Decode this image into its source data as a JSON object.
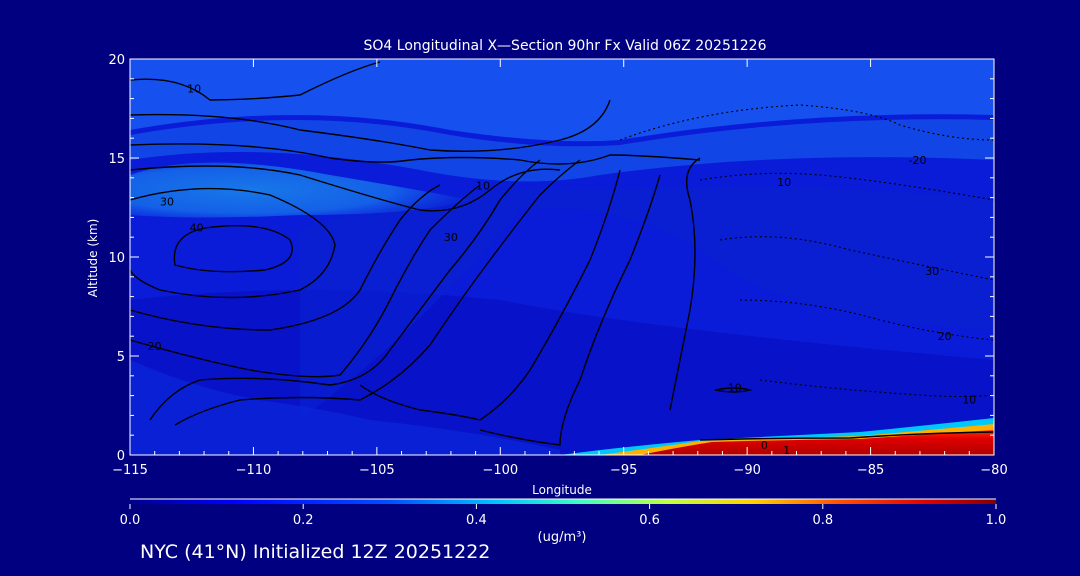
{
  "chart_data": {
    "type": "heatmap",
    "title": "SO4 Longitudinal X—Section 90hr  Fx Valid 06Z 20251226",
    "xlabel": "Longitude",
    "ylabel": "Altitude (km)",
    "xlim": [
      -115,
      -80
    ],
    "ylim": [
      0,
      20
    ],
    "x_ticks": [
      -115,
      -110,
      -105,
      -100,
      -95,
      -90,
      -85,
      -80
    ],
    "y_ticks": [
      0,
      5,
      10,
      15,
      20
    ],
    "colorbar": {
      "label": "(ug/m³)",
      "range": [
        0.0,
        1.0
      ],
      "ticks": [
        "0.0",
        "0.2",
        "0.4",
        "0.6",
        "0.8",
        "1.0"
      ]
    },
    "fill_regions": [
      {
        "lon_range": [
          -93,
          -80
        ],
        "alt_range": [
          0,
          1.2
        ],
        "value": 0.95,
        "note_color": "red"
      },
      {
        "lon_range": [
          -115,
          -104
        ],
        "alt_range": [
          12.5,
          15
        ],
        "value": 0.32
      },
      {
        "lon_range": [
          -115,
          -95
        ],
        "alt_range": [
          15,
          18
        ],
        "value": 0.2
      },
      {
        "lon_range": [
          -95,
          -80
        ],
        "alt_range": [
          16,
          20
        ],
        "value": 0.18
      }
    ],
    "contour_labels": [
      {
        "text": "10",
        "lon": -112.4,
        "alt": 18.5
      },
      {
        "text": "10",
        "lon": -100.7,
        "alt": 13.6
      },
      {
        "text": "10",
        "lon": -88.5,
        "alt": 13.8
      },
      {
        "text": "30",
        "lon": -113.5,
        "alt": 12.8
      },
      {
        "text": "40",
        "lon": -112.3,
        "alt": 11.5
      },
      {
        "text": "30",
        "lon": -102.0,
        "alt": 11.0
      },
      {
        "text": "20",
        "lon": -114.0,
        "alt": 5.5
      },
      {
        "text": "-20",
        "lon": -83.1,
        "alt": 14.9
      },
      {
        "text": "30",
        "lon": -82.5,
        "alt": 9.3
      },
      {
        "text": "20",
        "lon": -82.0,
        "alt": 6.0
      },
      {
        "text": "10",
        "lon": -81.0,
        "alt": 2.8
      },
      {
        "text": "10",
        "lon": -90.5,
        "alt": 3.4
      },
      {
        "text": "0",
        "lon": -89.3,
        "alt": 0.5
      },
      {
        "text": "1",
        "lon": -88.4,
        "alt": 0.25
      }
    ]
  },
  "footer": {
    "text": "NYC (41°N) Initialized 12Z 20251222"
  }
}
